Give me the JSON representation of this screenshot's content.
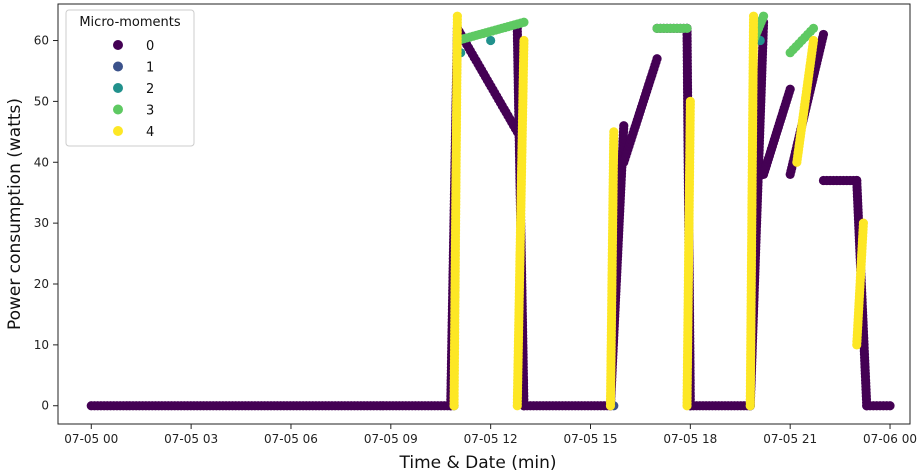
{
  "chart_data": {
    "type": "scatter",
    "xlabel": "Time & Date (min)",
    "ylabel": "Power consumption (watts)",
    "xlim_hours": [
      -1.0,
      24.6
    ],
    "ylim": [
      -3,
      66
    ],
    "x_ticks": [
      {
        "hour": 0,
        "label": "07-05 00"
      },
      {
        "hour": 3,
        "label": "07-05 03"
      },
      {
        "hour": 6,
        "label": "07-05 06"
      },
      {
        "hour": 9,
        "label": "07-05 09"
      },
      {
        "hour": 12,
        "label": "07-05 12"
      },
      {
        "hour": 15,
        "label": "07-05 15"
      },
      {
        "hour": 18,
        "label": "07-05 18"
      },
      {
        "hour": 21,
        "label": "07-05 21"
      },
      {
        "hour": 24,
        "label": "07-06 00"
      }
    ],
    "y_ticks": [
      0,
      10,
      20,
      30,
      40,
      50,
      60
    ],
    "grid": false,
    "legend": {
      "title": "Micro-moments",
      "placement": "top-left",
      "entries": [
        {
          "label": "0",
          "color": "#440154"
        },
        {
          "label": "1",
          "color": "#3b528b"
        },
        {
          "label": "2",
          "color": "#21918c"
        },
        {
          "label": "3",
          "color": "#5ec962"
        },
        {
          "label": "4",
          "color": "#fde725"
        }
      ]
    },
    "series": [
      {
        "name": "0",
        "color": "#440154",
        "segments": [
          {
            "x_hours": [
              0.0,
              10.8
            ],
            "y": 0
          },
          {
            "x_hours": [
              10.8,
              11.0
            ],
            "y": [
              0,
              62
            ]
          },
          {
            "x_hours": [
              11.0,
              12.8
            ],
            "y": [
              62,
              45
            ]
          },
          {
            "x_hours": [
              12.8,
              13.0
            ],
            "y": [
              62,
              0
            ]
          },
          {
            "x_hours": [
              13.0,
              15.6
            ],
            "y": 0
          },
          {
            "x_hours": [
              15.6,
              16.0
            ],
            "y": [
              0,
              46
            ]
          },
          {
            "x_hours": [
              16.0,
              17.0
            ],
            "y": [
              40,
              57
            ]
          },
          {
            "x_hours": [
              17.0,
              17.9
            ],
            "y": 62
          },
          {
            "x_hours": [
              17.9,
              18.0
            ],
            "y": [
              62,
              0
            ]
          },
          {
            "x_hours": [
              18.0,
              19.8
            ],
            "y": 0
          },
          {
            "x_hours": [
              19.8,
              20.2
            ],
            "y": [
              0,
              63
            ]
          },
          {
            "x_hours": [
              20.2,
              21.0
            ],
            "y": [
              38,
              52
            ]
          },
          {
            "x_hours": [
              21.0,
              22.0
            ],
            "y": [
              38,
              61
            ]
          },
          {
            "x_hours": [
              22.0,
              23.0
            ],
            "y": 37
          },
          {
            "x_hours": [
              23.0,
              23.3
            ],
            "y": [
              37,
              0
            ]
          },
          {
            "x_hours": [
              23.3,
              24.0
            ],
            "y": 0
          }
        ]
      },
      {
        "name": "1",
        "color": "#3b528b",
        "points": [
          [
            10.9,
            0
          ],
          [
            15.7,
            0
          ],
          [
            19.8,
            0
          ]
        ]
      },
      {
        "name": "2",
        "color": "#21918c",
        "points": [
          [
            11.1,
            58
          ],
          [
            12.0,
            60
          ],
          [
            20.1,
            60
          ]
        ]
      },
      {
        "name": "3",
        "color": "#5ec962",
        "segments": [
          {
            "x_hours": [
              11.0,
              13.0
            ],
            "y": [
              60,
              63
            ]
          },
          {
            "x_hours": [
              17.0,
              17.9
            ],
            "y": 62
          },
          {
            "x_hours": [
              19.9,
              20.2
            ],
            "y": [
              60,
              64
            ]
          },
          {
            "x_hours": [
              21.0,
              21.7
            ],
            "y": [
              58,
              62
            ]
          }
        ]
      },
      {
        "name": "4",
        "color": "#fde725",
        "segments": [
          {
            "x_hours": [
              10.9,
              11.0
            ],
            "y": [
              0,
              64
            ]
          },
          {
            "x_hours": [
              12.8,
              13.0
            ],
            "y": [
              0,
              60
            ]
          },
          {
            "x_hours": [
              15.6,
              15.7
            ],
            "y": [
              0,
              45
            ]
          },
          {
            "x_hours": [
              17.9,
              18.0
            ],
            "y": [
              0,
              50
            ]
          },
          {
            "x_hours": [
              19.8,
              19.9
            ],
            "y": [
              0,
              64
            ]
          },
          {
            "x_hours": [
              21.2,
              21.7
            ],
            "y": [
              40,
              60
            ]
          },
          {
            "x_hours": [
              23.0,
              23.2
            ],
            "y": [
              10,
              30
            ]
          }
        ]
      }
    ]
  }
}
